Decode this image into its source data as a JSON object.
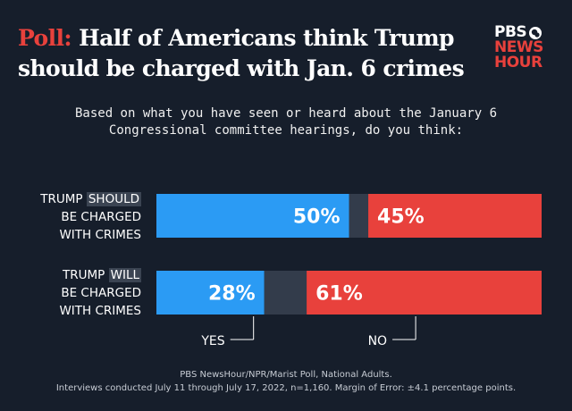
{
  "header": {
    "kicker": "Poll:",
    "title_rest": "Half of Americans think Trump should be charged with Jan. 6 crimes"
  },
  "logo": {
    "line1": "PBS",
    "line2": "NEWS",
    "line3": "HOUR"
  },
  "question": "Based on what you have seen or heard about the January 6 Congressional committee hearings, do you think:",
  "rows": [
    {
      "label_pre": "TRUMP ",
      "label_highlight": "SHOULD",
      "label_line2": "BE CHARGED",
      "label_line3": "WITH CRIMES"
    },
    {
      "label_pre": "TRUMP ",
      "label_highlight": "WILL",
      "label_line2": "BE CHARGED",
      "label_line3": "WITH CRIMES"
    }
  ],
  "footer": {
    "line1": "PBS NewsHour/NPR/Marist Poll, National Adults.",
    "line2": "Interviews conducted July 11 through July 17, 2022, n=1,160. Margin of Error: ±4.1 percentage points."
  },
  "colors": {
    "yes": "#2b9bf4",
    "no": "#e8413c",
    "unsure": "#333c4b",
    "background": "#161e2b"
  },
  "chart_data": {
    "type": "bar",
    "orientation": "horizontal",
    "stacked": true,
    "title": "Half of Americans think Trump should be charged with Jan. 6 crimes",
    "categories": [
      "TRUMP SHOULD BE CHARGED WITH CRIMES",
      "TRUMP WILL BE CHARGED WITH CRIMES"
    ],
    "series": [
      {
        "name": "YES",
        "values": [
          50,
          28
        ],
        "labels": [
          "50%",
          "28%"
        ]
      },
      {
        "name": "",
        "values": [
          5,
          11
        ],
        "labels": [
          "",
          ""
        ]
      },
      {
        "name": "NO",
        "values": [
          45,
          61
        ],
        "labels": [
          "45%",
          "61%"
        ]
      }
    ],
    "xlim": [
      0,
      100
    ],
    "grid": false,
    "legend": "bottom"
  }
}
